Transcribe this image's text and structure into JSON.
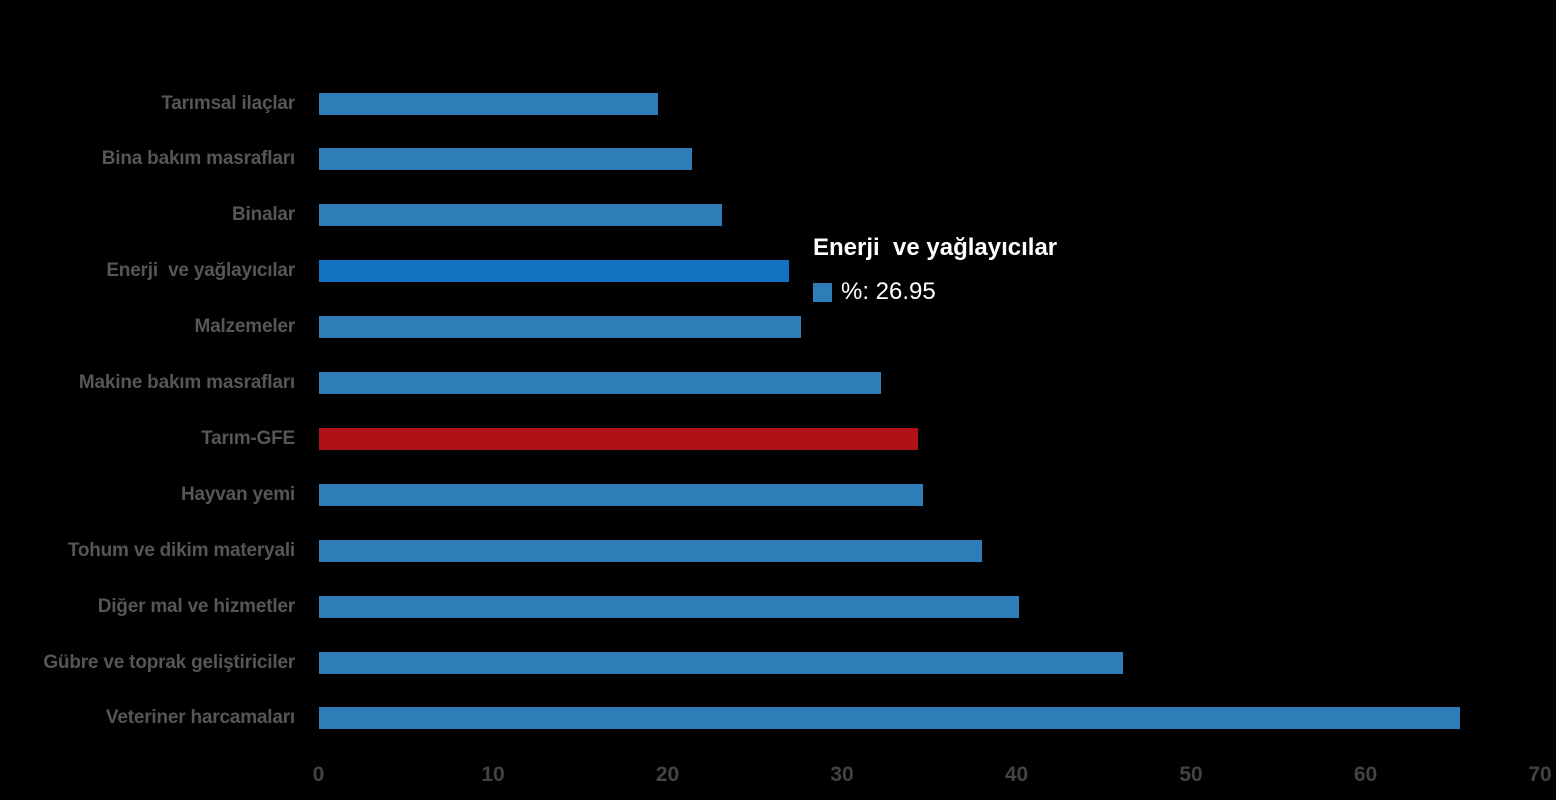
{
  "chart_data": {
    "type": "bar",
    "orientation": "horizontal",
    "title": "",
    "xlabel": "",
    "ylabel": "",
    "xlim": [
      0,
      70
    ],
    "x_ticks": [
      0,
      10,
      20,
      30,
      40,
      50,
      60,
      70
    ],
    "grid": false,
    "legend": false,
    "categories": [
      "Tarımsal ilaçlar",
      "Bina bakım masrafları",
      "Binalar",
      "Enerji  ve yağlayıcılar",
      "Malzemeler",
      "Makine bakım masrafları",
      "Tarım-GFE",
      "Hayvan yemi",
      "Tohum ve dikim materyali",
      "Diğer mal ve hizmetler",
      "Gübre ve toprak geliştiriciler",
      "Veteriner harcamaları"
    ],
    "series": [
      {
        "name": "%",
        "values": [
          19.4,
          21.4,
          23.1,
          26.95,
          27.65,
          32.2,
          34.3,
          34.6,
          38.0,
          40.1,
          46.1,
          65.4
        ]
      }
    ],
    "bar_states": [
      "normal",
      "normal",
      "normal",
      "hover",
      "normal",
      "normal",
      "red",
      "normal",
      "normal",
      "normal",
      "normal",
      "normal"
    ],
    "highlighted_point": {
      "category": "Enerji  ve yağlayıcılar",
      "series": "%",
      "value": 26.95
    },
    "colors": {
      "background": "#000000",
      "bar_blue": "#2E7CB8",
      "bar_blue_hover": "#1173C1",
      "bar_red": "#AE1117",
      "category_label": "#565656",
      "tick_label": "#434343",
      "tooltip_text": "#FFFFFF",
      "tooltip_swatch": "#2E7CB8"
    },
    "tooltip": {
      "title": "Enerji  ve yağlayıcılar",
      "value_label": "%: 26.95"
    }
  }
}
